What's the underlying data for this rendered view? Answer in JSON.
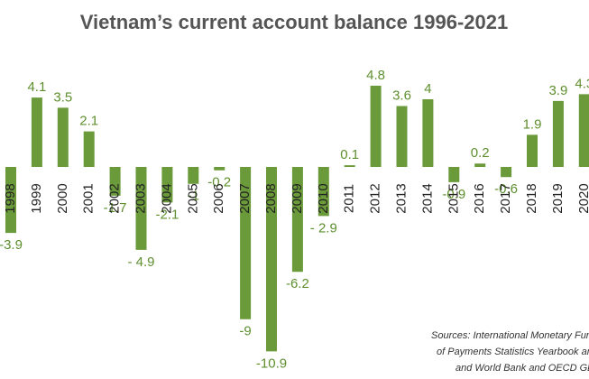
{
  "chart_data": {
    "type": "bar",
    "title": "Vietnam’s current account balance 1996-2021",
    "categories": [
      "1998",
      "1999",
      "2000",
      "2001",
      "2002",
      "2003",
      "2004",
      "2005",
      "2006",
      "2007",
      "2008",
      "2009",
      "2010",
      "2011",
      "2012",
      "2013",
      "2014",
      "2015",
      "2016",
      "2017",
      "2018",
      "2019",
      "2020"
    ],
    "values": [
      -3.9,
      4.1,
      3.5,
      2.1,
      -1.7,
      -4.9,
      -2.1,
      -1,
      -0.2,
      -9,
      -10.9,
      -6.2,
      -2.9,
      0.1,
      4.8,
      3.6,
      4,
      -0.9,
      0.2,
      -0.6,
      1.9,
      3.9,
      4.3
    ],
    "value_labels": [
      "-3.9",
      "4.1",
      "3.5",
      "2.1",
      "-1.7",
      "- 4.9",
      "-2.1",
      "-1",
      "-0.2",
      "-9",
      "-10.9",
      "-6.2",
      "- 2.9",
      "0.1",
      "4.8",
      "3.6",
      "4",
      "-0.9",
      "0.2",
      "-0.6",
      "1.9",
      "3.9",
      "4.3"
    ],
    "color": "#6a9a3a",
    "source": [
      "Sources: International Monetary Fund, I",
      "of Payments Statistics Yearbook and da",
      "and World Bank and OECD GDP es"
    ]
  }
}
